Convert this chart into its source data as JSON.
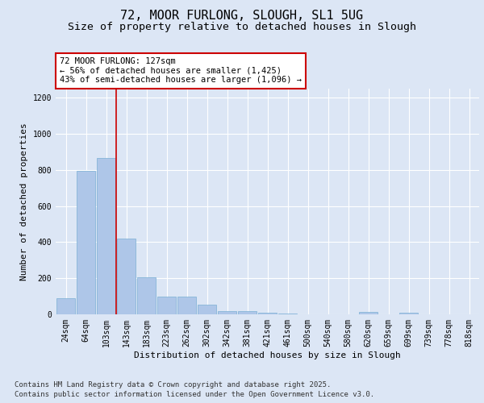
{
  "title": "72, MOOR FURLONG, SLOUGH, SL1 5UG",
  "subtitle": "Size of property relative to detached houses in Slough",
  "xlabel": "Distribution of detached houses by size in Slough",
  "ylabel": "Number of detached properties",
  "categories": [
    "24sqm",
    "64sqm",
    "103sqm",
    "143sqm",
    "183sqm",
    "223sqm",
    "262sqm",
    "302sqm",
    "342sqm",
    "381sqm",
    "421sqm",
    "461sqm",
    "500sqm",
    "540sqm",
    "580sqm",
    "620sqm",
    "659sqm",
    "699sqm",
    "739sqm",
    "778sqm",
    "818sqm"
  ],
  "values": [
    90,
    795,
    865,
    420,
    205,
    100,
    100,
    55,
    20,
    20,
    10,
    5,
    0,
    0,
    0,
    15,
    0,
    10,
    0,
    0,
    0
  ],
  "bar_color": "#aec6e8",
  "bar_edge_color": "#7aafd4",
  "vline_x_index": 2,
  "vline_color": "#cc0000",
  "annotation_text": "72 MOOR FURLONG: 127sqm\n← 56% of detached houses are smaller (1,425)\n43% of semi-detached houses are larger (1,096) →",
  "annotation_box_edgecolor": "#cc0000",
  "annotation_text_color": "#000000",
  "ylim": [
    0,
    1250
  ],
  "yticks": [
    0,
    200,
    400,
    600,
    800,
    1000,
    1200
  ],
  "background_color": "#dce6f5",
  "plot_bg_color": "#dce6f5",
  "grid_color": "#ffffff",
  "footer_line1": "Contains HM Land Registry data © Crown copyright and database right 2025.",
  "footer_line2": "Contains public sector information licensed under the Open Government Licence v3.0.",
  "title_fontsize": 11,
  "subtitle_fontsize": 9.5,
  "axis_label_fontsize": 8,
  "tick_fontsize": 7,
  "annotation_fontsize": 7.5,
  "footer_fontsize": 6.5
}
